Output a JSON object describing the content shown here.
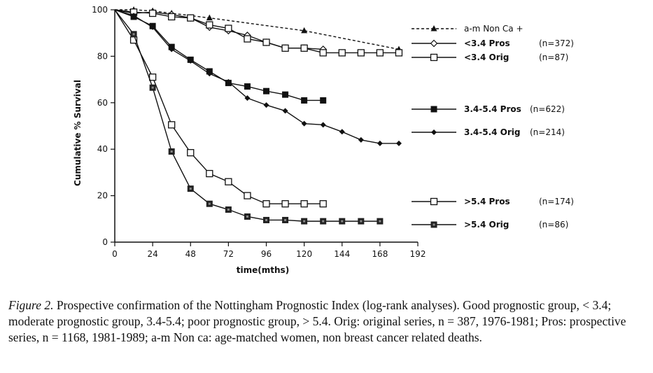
{
  "caption": {
    "lead": "Figure 2.",
    "text": "Prospective confirmation of the Nottingham Prognostic Index (log-rank analyses). Good prognostic group, < 3.4; moderate prognostic group, 3.4-5.4; poor prognostic group, > 5.4. Orig: original series, n = 387, 1976-1981; Pros: prospective series, n = 1168, 1981-1989; a-m Non ca: age-matched women, non breast cancer related deaths."
  },
  "chart_data": {
    "type": "line",
    "xlabel": "time(mths)",
    "ylabel": "Cumulative % Survival",
    "xlim": [
      0,
      192
    ],
    "ylim": [
      0,
      100
    ],
    "xticks": [
      0,
      24,
      48,
      72,
      96,
      120,
      144,
      168,
      192
    ],
    "yticks": [
      0,
      20,
      40,
      60,
      80,
      100
    ],
    "grid": false,
    "legend_position": "right",
    "series": [
      {
        "name": "a-m Non Ca +",
        "n_label": "",
        "marker": "triangle",
        "dashed": true,
        "x": [
          0,
          12,
          24,
          36,
          60,
          120,
          180
        ],
        "y": [
          100,
          100,
          99.5,
          98.5,
          96.5,
          91,
          83
        ]
      },
      {
        "name": "<3.4 Pros",
        "n_label": "(n=372)",
        "marker": "diamond-open",
        "dashed": false,
        "x": [
          0,
          12,
          24,
          36,
          48,
          60,
          72,
          84,
          96,
          108,
          120,
          132
        ],
        "y": [
          100,
          98.5,
          99,
          98,
          96.5,
          92.5,
          91,
          89,
          86,
          83.5,
          83.5,
          83
        ]
      },
      {
        "name": "<3.4 Orig",
        "n_label": "(n=87)",
        "marker": "square-open",
        "dashed": false,
        "x": [
          0,
          12,
          24,
          36,
          48,
          60,
          72,
          84,
          96,
          108,
          120,
          132,
          144,
          156,
          168,
          180
        ],
        "y": [
          100,
          99,
          98.5,
          97,
          96.5,
          93.5,
          92,
          87.5,
          86,
          83.5,
          83.5,
          81.5,
          81.5,
          81.5,
          81.5,
          81.5
        ]
      },
      {
        "name": "3.4-5.4 Pros",
        "n_label": "(n=622)",
        "marker": "square-filled",
        "dashed": false,
        "x": [
          0,
          12,
          24,
          36,
          48,
          60,
          72,
          84,
          96,
          108,
          120,
          132
        ],
        "y": [
          100,
          97,
          93,
          84,
          78.5,
          73.5,
          68.5,
          67,
          65,
          63.5,
          61,
          61
        ]
      },
      {
        "name": "3.4-5.4 Orig",
        "n_label": "(n=214)",
        "marker": "diamond-filled",
        "dashed": false,
        "x": [
          0,
          12,
          24,
          36,
          48,
          60,
          72,
          84,
          96,
          108,
          120,
          132,
          144,
          156,
          168,
          180
        ],
        "y": [
          100,
          97.5,
          92.5,
          83,
          78,
          72.5,
          69,
          62,
          59,
          56.5,
          51,
          50.5,
          47.5,
          44,
          42.5,
          42.5
        ]
      },
      {
        "name": ">5.4 Pros",
        "n_label": "(n=174)",
        "marker": "square-open",
        "dashed": false,
        "x": [
          0,
          12,
          24,
          36,
          48,
          60,
          72,
          84,
          96,
          108,
          120,
          132
        ],
        "y": [
          100,
          87,
          71,
          50.5,
          38.5,
          29.5,
          26,
          20,
          16.5,
          16.5,
          16.5,
          16.5
        ]
      },
      {
        "name": ">5.4 Orig",
        "n_label": "(n=86)",
        "marker": "square-dot",
        "dashed": false,
        "x": [
          0,
          12,
          24,
          36,
          48,
          60,
          72,
          84,
          96,
          108,
          120,
          132,
          144,
          156,
          168
        ],
        "y": [
          100,
          89.5,
          66.5,
          39,
          23,
          16.5,
          14,
          11,
          9.5,
          9.5,
          9,
          9,
          9,
          9,
          9
        ]
      }
    ]
  }
}
